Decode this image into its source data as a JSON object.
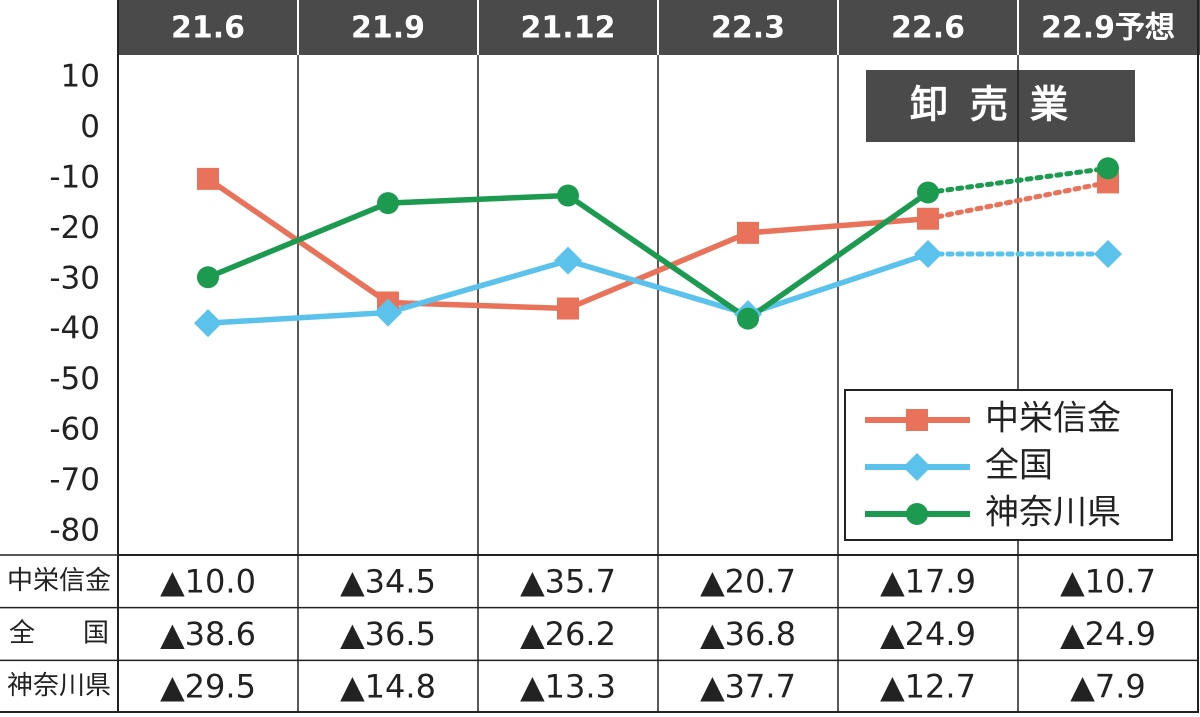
{
  "chart_data": {
    "type": "line",
    "title": "卸売業",
    "categories": [
      "21.6",
      "21.9",
      "21.12",
      "22.3",
      "22.6",
      "22.9予想"
    ],
    "series": [
      {
        "name": "中栄信金",
        "color": "#e8735a",
        "marker": "square",
        "values": [
          -10.0,
          -34.5,
          -35.7,
          -20.7,
          -17.9,
          -10.7
        ],
        "value_labels": [
          "▲10.0",
          "▲34.5",
          "▲35.7",
          "▲20.7",
          "▲17.9",
          "▲10.7"
        ]
      },
      {
        "name": "全国",
        "color": "#5bc2ec",
        "marker": "diamond",
        "values": [
          -38.6,
          -36.5,
          -26.2,
          -36.8,
          -24.9,
          -24.9
        ],
        "value_labels": [
          "▲38.6",
          "▲36.5",
          "▲26.2",
          "▲36.8",
          "▲24.9",
          "▲24.9"
        ]
      },
      {
        "name": "神奈川県",
        "color": "#1b9a50",
        "marker": "circle",
        "values": [
          -29.5,
          -14.8,
          -13.3,
          -37.7,
          -12.7,
          -7.9
        ],
        "value_labels": [
          "▲29.5",
          "▲14.8",
          "▲13.3",
          "▲37.7",
          "▲12.7",
          "▲7.9"
        ]
      }
    ],
    "ylim": [
      -80,
      10
    ],
    "yticks": [
      10,
      0,
      -10,
      -20,
      -30,
      -40,
      -50,
      -60,
      -70,
      -80
    ],
    "dotted_last_segment": true,
    "legend": "lower right"
  }
}
